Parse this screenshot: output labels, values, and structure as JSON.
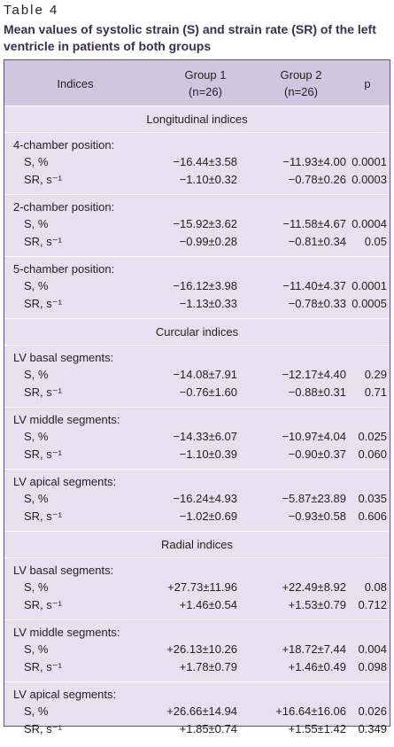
{
  "table_label": "Table 4",
  "caption": "Mean values of systolic strain (S) and strain rate (SR) of the left ventricle in patients of both groups",
  "header": {
    "indices": "Indices",
    "group1_line1": "Group 1",
    "group1_line2": "(n=26)",
    "group2_line1": "Group 2",
    "group2_line2": "(n=26)",
    "p": "p"
  },
  "sections": [
    {
      "title": "Longitudinal indices",
      "groups": [
        {
          "title": "4-chamber position:",
          "rows": [
            {
              "label": "S, %",
              "g1": "−16.44±3.58",
              "g2": "−11.93±4.00",
              "p": "0.0001"
            },
            {
              "label": "SR, s⁻¹",
              "g1": "−1.10±0.32",
              "g2": "−0.78±0.26",
              "p": "0.0003"
            }
          ]
        },
        {
          "title": "2-chamber position:",
          "rows": [
            {
              "label": "S, %",
              "g1": "−15.92±3.62",
              "g2": "−11.58±4.67",
              "p": "0.0004"
            },
            {
              "label": "SR, s⁻¹",
              "g1": "−0.99±0.28",
              "g2": "−0.81±0.34",
              "p": "0.05"
            }
          ]
        },
        {
          "title": "5-chamber position:",
          "rows": [
            {
              "label": "S, %",
              "g1": "−16.12±3.98",
              "g2": "−11.40±4.37",
              "p": "0.0001"
            },
            {
              "label": "SR, s⁻¹",
              "g1": "−1.13±0.33",
              "g2": "−0.78±0.33",
              "p": "0.0005"
            }
          ]
        }
      ]
    },
    {
      "title": "Curcular indices",
      "groups": [
        {
          "title": "LV basal segments:",
          "rows": [
            {
              "label": "S, %",
              "g1": "−14.08±7.91",
              "g2": "−12.17±4.40",
              "p": "0.29"
            },
            {
              "label": "SR, s⁻¹",
              "g1": "−0.76±1.60",
              "g2": "−0.88±0.31",
              "p": "0.71"
            }
          ]
        },
        {
          "title": "LV middle segments:",
          "rows": [
            {
              "label": "S, %",
              "g1": "−14.33±6.07",
              "g2": "−10.97±4.04",
              "p": "0.025"
            },
            {
              "label": "SR, s⁻¹",
              "g1": "−1.10±0.39",
              "g2": "−0.90±0.37",
              "p": "0.060"
            }
          ]
        },
        {
          "title": "LV apical segments:",
          "rows": [
            {
              "label": "S, %",
              "g1": "−16.24±4.93",
              "g2": "−5.87±23.89",
              "p": "0.035"
            },
            {
              "label": "SR, s⁻¹",
              "g1": "−1.02±0.69",
              "g2": "−0.93±0.58",
              "p": "0.606"
            }
          ]
        }
      ]
    },
    {
      "title": "Radial indices",
      "groups": [
        {
          "title": "LV basal segments:",
          "rows": [
            {
              "label": "S, %",
              "g1": "+27.73±11.96",
              "g2": "+22.49±8.92",
              "p": "0.08"
            },
            {
              "label": "SR, s⁻¹",
              "g1": "+1.46±0.54",
              "g2": "+1.53±0.79",
              "p": "0.712"
            }
          ]
        },
        {
          "title": "LV middle segments:",
          "rows": [
            {
              "label": "S, %",
              "g1": "+26.13±10.26",
              "g2": "+18.72±7.44",
              "p": "0.004"
            },
            {
              "label": "SR, s⁻¹",
              "g1": "+1.78±0.79",
              "g2": "+1.46±0.49",
              "p": "0.098"
            }
          ]
        },
        {
          "title": "LV apical segments:",
          "rows": [
            {
              "label": "S, %",
              "g1": "+26.66±14.94",
              "g2": "+16.64±16.06",
              "p": "0.026"
            },
            {
              "label": "SR, s⁻¹",
              "g1": "+1.85±0.74",
              "g2": "+1.55±1.42",
              "p": "0.349"
            }
          ]
        }
      ]
    }
  ]
}
